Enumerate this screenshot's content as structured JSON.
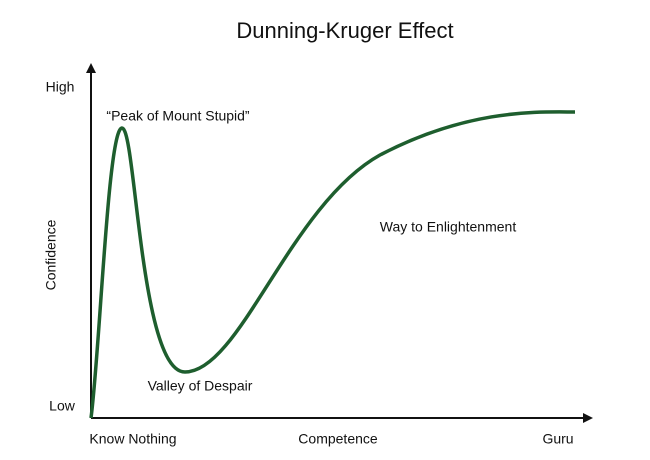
{
  "title": "Dunning-Kruger Effect",
  "y_axis": {
    "label": "Confidence",
    "high": "High",
    "low": "Low"
  },
  "x_axis": {
    "label": "Competence",
    "start": "Know Nothing",
    "end": "Guru"
  },
  "annotations": [
    "“Peak of Mount Stupid”",
    "Way to Enlightenment",
    "Valley of Despair"
  ]
}
